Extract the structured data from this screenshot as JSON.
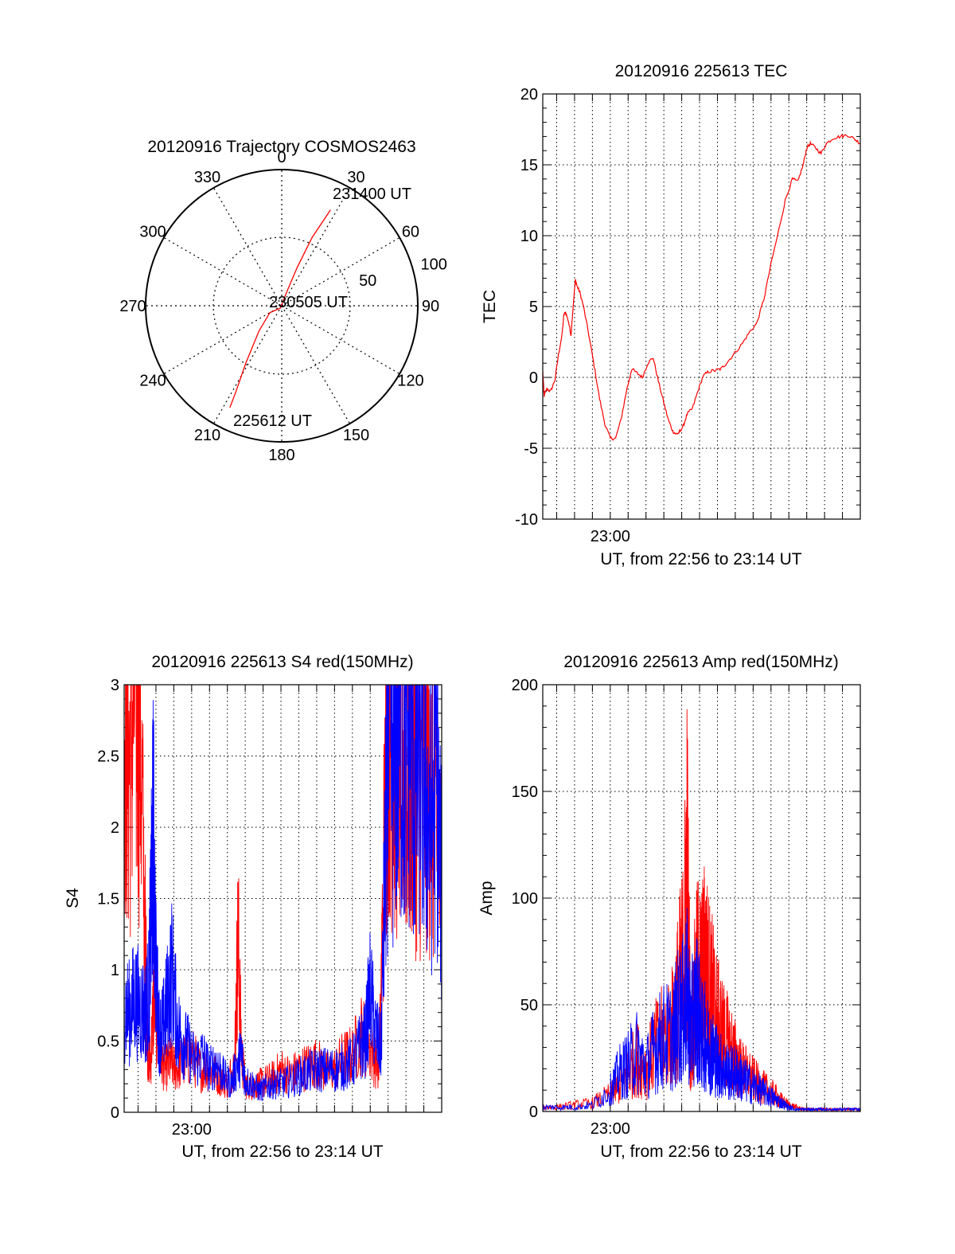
{
  "chart_data": [
    {
      "id": "polar",
      "type": "polar-trajectory",
      "title": "20120916 Trajectory COSMOS2463",
      "azimuth_labels": [
        "0",
        "30",
        "60",
        "90",
        "120",
        "150",
        "180",
        "210",
        "240",
        "270",
        "300",
        "330"
      ],
      "azimuth_values": [
        0,
        30,
        60,
        90,
        120,
        150,
        180,
        210,
        240,
        270,
        300,
        330
      ],
      "radial_labels": [
        "50",
        "100"
      ],
      "radial_values": [
        50,
        100
      ],
      "r_outer": 100,
      "r_inner": 50,
      "track_color": "#ff0000",
      "annotations": {
        "start": "225612 UT",
        "mid": "230505 UT",
        "end": "231400 UT"
      },
      "trajectory": [
        {
          "az": 207,
          "r": 84
        },
        {
          "az": 208,
          "r": 72
        },
        {
          "az": 212,
          "r": 50
        },
        {
          "az": 222,
          "r": 25
        },
        {
          "az": 240,
          "r": 10
        },
        {
          "az": 210,
          "r": 2
        },
        {
          "az": 20,
          "r": 10
        },
        {
          "az": 22,
          "r": 30
        },
        {
          "az": 24,
          "r": 55
        },
        {
          "az": 27,
          "r": 79
        }
      ]
    },
    {
      "id": "tec",
      "type": "line",
      "title": "20120916 225613 TEC",
      "xlabel": "UT, from 22:56 to 23:14 UT",
      "ylabel": "TEC",
      "x_range": [
        "22:56:13",
        "23:14:00"
      ],
      "xlim_minutes": [
        -3.78,
        14.0
      ],
      "ylim": [
        -10,
        20
      ],
      "yticks": [
        -10,
        -5,
        0,
        5,
        10,
        15,
        20
      ],
      "ytick_labels": [
        "-10",
        "-5",
        "0",
        "5",
        "10",
        "15",
        "20"
      ],
      "xtick_labels": [
        "23:00"
      ],
      "xtick_values": [
        0
      ],
      "grid": true,
      "series": [
        {
          "color": "#ff0000",
          "x": [
            -3.78,
            -3.7,
            -3.55,
            -3.35,
            -3.1,
            -2.9,
            -2.7,
            -2.6,
            -2.5,
            -2.35,
            -2.2,
            -2.05,
            -1.95,
            -1.85,
            -1.7,
            -1.5,
            -1.2,
            -0.9,
            -0.6,
            -0.3,
            0.0,
            0.3,
            0.6,
            0.9,
            1.2,
            1.5,
            1.8,
            2.1,
            2.4,
            2.7,
            3.0,
            3.25,
            3.5,
            3.7,
            3.85,
            3.9,
            4.1,
            4.3,
            4.6,
            4.9,
            5.2,
            5.5,
            5.9,
            6.2,
            6.5,
            6.9,
            7.4,
            7.8,
            8.2,
            8.6,
            9.0,
            9.4,
            9.8,
            10.2,
            10.5,
            10.8,
            11.0,
            11.2,
            11.5,
            11.8,
            12.1,
            12.5,
            12.9,
            13.3,
            13.7,
            14.0
          ],
          "y": [
            0.4,
            -1.3,
            -0.8,
            -1.0,
            -0.2,
            1.6,
            3.0,
            4.4,
            4.6,
            4.0,
            3.0,
            5.5,
            6.9,
            6.4,
            6.0,
            5.0,
            3.0,
            0.8,
            -1.5,
            -3.3,
            -4.3,
            -4.3,
            -3.0,
            -1.0,
            0.6,
            0.3,
            0.0,
            1.0,
            1.4,
            -0.3,
            -1.8,
            -3.0,
            -3.8,
            -4.0,
            -3.9,
            -3.8,
            -3.4,
            -2.6,
            -2.2,
            -1.0,
            0.1,
            0.4,
            0.5,
            0.6,
            1.0,
            1.6,
            2.4,
            3.2,
            3.8,
            5.5,
            8.0,
            10.2,
            12.5,
            14.0,
            13.8,
            15.0,
            16.2,
            16.5,
            16.2,
            15.8,
            16.5,
            16.9,
            17.0,
            17.1,
            16.8,
            16.5
          ]
        }
      ]
    },
    {
      "id": "s4",
      "type": "line",
      "title": "20120916 225613 S4 red(150MHz)",
      "xlabel": "UT, from 22:56 to 23:14 UT",
      "ylabel": "S4",
      "x_range": [
        "22:56:13",
        "23:14:00"
      ],
      "xlim_minutes": [
        -3.78,
        14.0
      ],
      "ylim": [
        0,
        3
      ],
      "yticks": [
        0,
        0.5,
        1,
        1.5,
        2,
        2.5,
        3
      ],
      "ytick_labels": [
        "0",
        "0.5",
        "1",
        "1.5",
        "2",
        "2.5",
        "3"
      ],
      "xtick_labels": [
        "23:00"
      ],
      "xtick_values": [
        0
      ],
      "grid": true,
      "series": [
        {
          "color": "#ff0000",
          "x": [
            -3.78,
            -3.5,
            -3.2,
            -2.9,
            -2.6,
            -2.45,
            -2.3,
            -2.1,
            -1.8,
            -1.5,
            -1.2,
            -0.9,
            -0.5,
            0.0,
            0.5,
            1.0,
            1.5,
            2.0,
            2.4,
            2.6,
            2.8,
            3.0,
            3.4,
            3.8,
            4.2,
            4.6,
            5.0,
            5.5,
            6.0,
            6.5,
            7.0,
            7.5,
            8.0,
            8.5,
            9.0,
            9.5,
            10.0,
            10.5,
            10.85,
            11.0,
            11.2,
            11.5,
            11.8,
            12.1,
            12.4,
            12.7,
            13.0,
            13.3,
            13.6,
            14.0
          ],
          "y": [
            2.9,
            2.4,
            3.0,
            2.8,
            1.2,
            0.45,
            0.35,
            0.85,
            0.4,
            0.3,
            0.35,
            0.3,
            0.35,
            0.4,
            0.3,
            0.3,
            0.25,
            0.2,
            0.35,
            1.25,
            0.4,
            0.2,
            0.18,
            0.2,
            0.22,
            0.24,
            0.3,
            0.26,
            0.3,
            0.32,
            0.35,
            0.28,
            0.3,
            0.38,
            0.4,
            0.55,
            0.45,
            0.3,
            2.2,
            3.0,
            2.7,
            2.5,
            2.6,
            2.3,
            2.5,
            2.2,
            2.4,
            2.3,
            2.0,
            1.6
          ]
        },
        {
          "color": "#0000ff",
          "x": [
            -3.78,
            -3.5,
            -3.2,
            -2.9,
            -2.6,
            -2.4,
            -2.25,
            -2.15,
            -2.0,
            -1.8,
            -1.6,
            -1.4,
            -1.1,
            -0.8,
            -0.5,
            -0.2,
            0.2,
            0.6,
            1.0,
            1.4,
            1.8,
            2.2,
            2.6,
            2.8,
            3.0,
            3.4,
            3.8,
            4.2,
            4.6,
            5.0,
            5.5,
            6.0,
            6.5,
            7.0,
            7.5,
            8.0,
            8.5,
            9.0,
            9.4,
            9.7,
            10.0,
            10.3,
            10.6,
            10.85,
            11.0,
            11.3,
            11.6,
            11.9,
            12.2,
            12.5,
            12.8,
            13.1,
            13.4,
            13.7,
            14.0
          ],
          "y": [
            0.75,
            0.7,
            0.8,
            0.75,
            0.7,
            0.85,
            1.5,
            2.0,
            1.0,
            0.55,
            0.6,
            0.75,
            1.0,
            0.6,
            0.5,
            0.45,
            0.35,
            0.4,
            0.3,
            0.35,
            0.25,
            0.2,
            0.35,
            0.4,
            0.22,
            0.2,
            0.15,
            0.18,
            0.2,
            0.2,
            0.22,
            0.25,
            0.28,
            0.3,
            0.3,
            0.3,
            0.32,
            0.35,
            0.45,
            0.5,
            0.85,
            0.55,
            0.45,
            1.8,
            2.6,
            2.4,
            2.8,
            2.5,
            2.7,
            2.3,
            2.6,
            2.2,
            2.0,
            2.4,
            1.5
          ]
        }
      ]
    },
    {
      "id": "amp",
      "type": "line",
      "title": "20120916 225613 Amp red(150MHz)",
      "xlabel": "UT, from 22:56 to 23:14 UT",
      "ylabel": "Amp",
      "x_range": [
        "22:56:13",
        "23:14:00"
      ],
      "xlim_minutes": [
        -3.78,
        14.0
      ],
      "ylim": [
        0,
        200
      ],
      "yticks": [
        0,
        50,
        100,
        150,
        200
      ],
      "ytick_labels": [
        "0",
        "50",
        "100",
        "150",
        "200"
      ],
      "xtick_labels": [
        "23:00"
      ],
      "xtick_values": [
        0
      ],
      "grid": true,
      "series": [
        {
          "color": "#ff0000",
          "x": [
            -3.78,
            -3.0,
            -2.0,
            -1.0,
            0.0,
            0.5,
            1.0,
            1.5,
            2.0,
            2.5,
            3.0,
            3.5,
            3.8,
            4.1,
            4.3,
            4.5,
            4.7,
            4.9,
            5.1,
            5.3,
            5.5,
            5.7,
            5.9,
            6.1,
            6.4,
            6.7,
            7.0,
            7.3,
            7.6,
            8.0,
            8.4,
            8.8,
            9.2,
            9.6,
            10.0,
            10.4,
            10.8,
            11.2,
            11.6,
            12.0,
            12.5,
            13.0,
            13.5,
            14.0
          ],
          "y": [
            2,
            2,
            3,
            4,
            8,
            12,
            18,
            25,
            20,
            30,
            35,
            40,
            55,
            70,
            118,
            30,
            50,
            65,
            60,
            70,
            60,
            55,
            45,
            40,
            35,
            30,
            25,
            20,
            18,
            15,
            12,
            10,
            8,
            5,
            3,
            2,
            1,
            1,
            1,
            1,
            1,
            1,
            1,
            1
          ]
        },
        {
          "color": "#0000ff",
          "x": [
            -3.78,
            -3.0,
            -2.0,
            -1.0,
            0.0,
            0.5,
            1.0,
            1.5,
            2.0,
            2.5,
            3.0,
            3.5,
            3.8,
            4.1,
            4.3,
            4.5,
            4.7,
            4.9,
            5.1,
            5.3,
            5.5,
            5.7,
            5.9,
            6.1,
            6.4,
            6.7,
            7.0,
            7.3,
            7.6,
            8.0,
            8.4,
            8.8,
            9.2,
            9.6,
            10.0,
            10.4,
            10.8,
            11.2,
            11.6,
            12.0,
            12.5,
            13.0,
            13.5,
            14.0
          ],
          "y": [
            2,
            2,
            2,
            3,
            10,
            18,
            22,
            28,
            20,
            30,
            35,
            35,
            45,
            48,
            55,
            40,
            45,
            50,
            35,
            35,
            30,
            28,
            25,
            22,
            20,
            18,
            18,
            16,
            14,
            12,
            10,
            8,
            6,
            4,
            2,
            1,
            1,
            1,
            1,
            1,
            1,
            1,
            1,
            1
          ]
        }
      ]
    }
  ]
}
